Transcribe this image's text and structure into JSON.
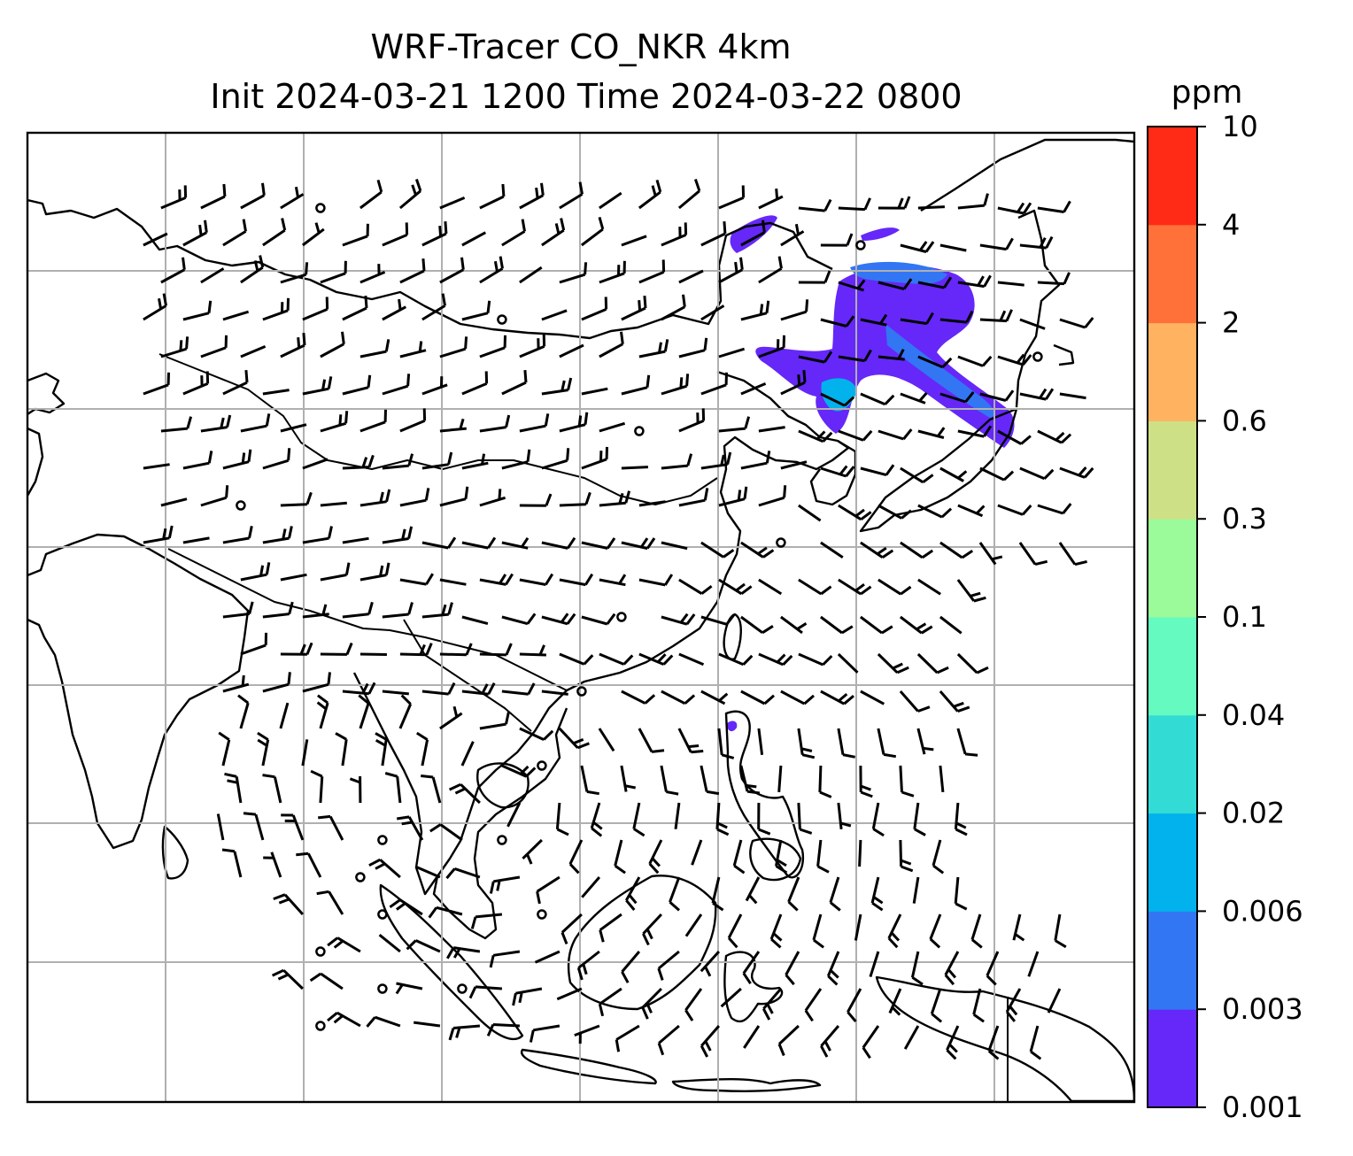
{
  "title": {
    "line1": "WRF-Tracer CO_NKR 4km",
    "line2": "Init 2024-03-21 1200 Time 2024-03-22 0800"
  },
  "colorbar": {
    "unit": "ppm",
    "levels": [
      "0.001",
      "0.003",
      "0.006",
      "0.02",
      "0.04",
      "0.1",
      "0.3",
      "0.6",
      "2",
      "4",
      "10"
    ],
    "colors": [
      "#6528f8",
      "#3276f4",
      "#02b2ec",
      "#32dcd4",
      "#64fac0",
      "#9bfa9a",
      "#cde085",
      "#ffb25f",
      "#ff7139",
      "#ff2b17"
    ]
  },
  "map": {
    "grid": "on",
    "tracer_color": "#6528f8",
    "tracer_color_2": "#3276f4",
    "tracer_color_3": "#02b2ec"
  },
  "chart_data": {
    "type": "heatmap",
    "variable": "CO_NKR tracer concentration with wind barbs",
    "unit": "ppm",
    "levels": [
      0.001,
      0.003,
      0.006,
      0.02,
      0.04,
      0.1,
      0.3,
      0.6,
      2,
      4,
      10
    ],
    "grid": true,
    "legend": "colorbar right"
  }
}
